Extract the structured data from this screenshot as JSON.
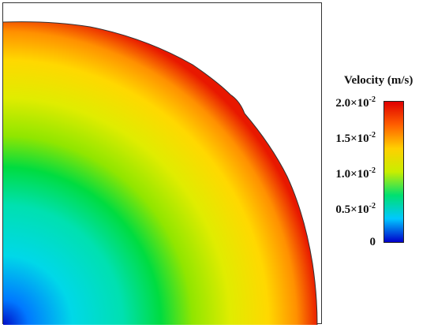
{
  "legend": {
    "title": "Velocity  (m/s)",
    "ticks": [
      {
        "mantissa": "2.0×10",
        "exponent": "-2",
        "value": 0.02
      },
      {
        "mantissa": "1.5×10",
        "exponent": "-2",
        "value": 0.015
      },
      {
        "mantissa": "1.0×10",
        "exponent": "-2",
        "value": 0.01
      },
      {
        "mantissa": "0.5×10",
        "exponent": "-2",
        "value": 0.005
      },
      {
        "mantissa": "0",
        "exponent": "",
        "value": 0
      }
    ],
    "range": [
      0,
      0.02
    ],
    "colormap": [
      "#0000cc",
      "#00c8ff",
      "#00e070",
      "#c8ee00",
      "#ffd000",
      "#ff6000",
      "#e00000"
    ]
  }
}
